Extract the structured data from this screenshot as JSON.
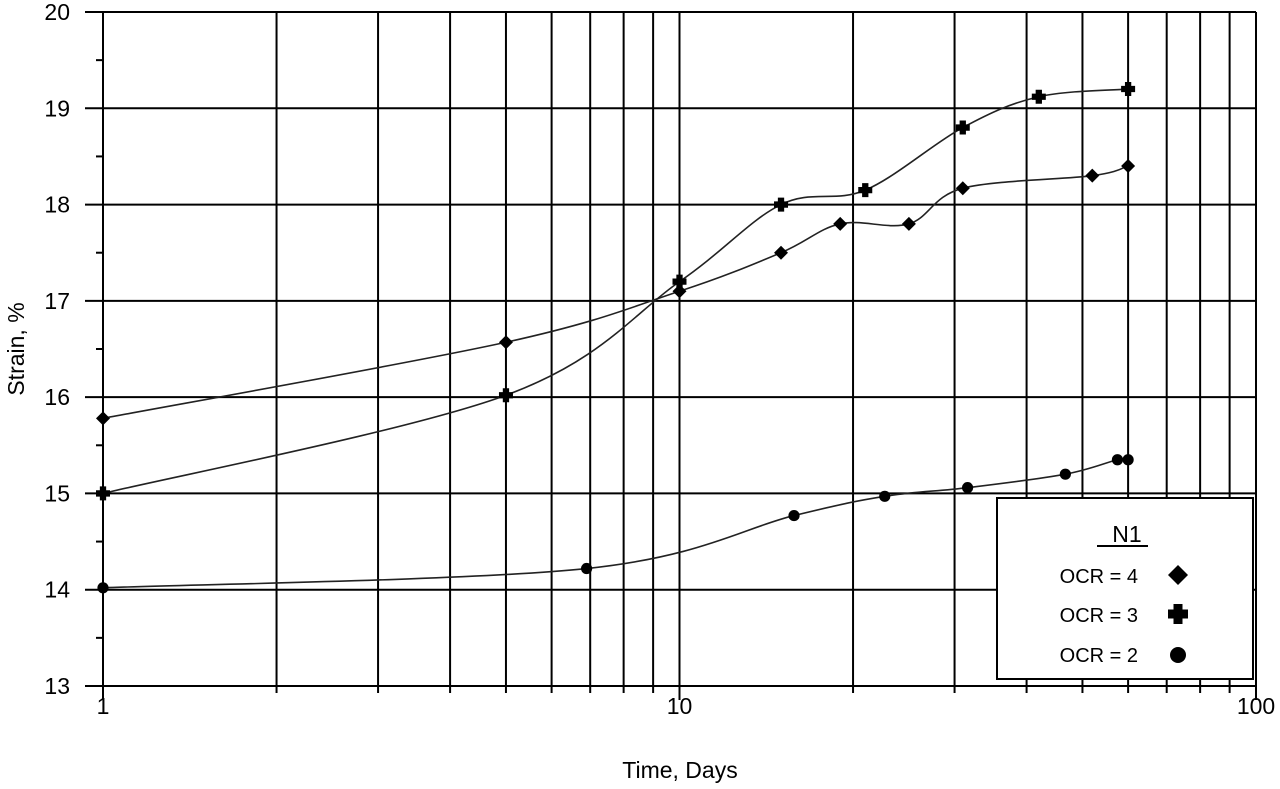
{
  "chart_data": {
    "type": "line",
    "title": "",
    "xlabel": "Time, Days",
    "ylabel": "Strain, %",
    "xscale": "log",
    "xlim": [
      1,
      100
    ],
    "ylim": [
      13,
      20
    ],
    "x_tick_labels": [
      "1",
      "10",
      "100"
    ],
    "x_ticks": [
      1,
      10,
      100
    ],
    "y_tick_labels": [
      "13",
      "14",
      "15",
      "16",
      "17",
      "18",
      "19",
      "20"
    ],
    "y_ticks": [
      13,
      14,
      15,
      16,
      17,
      18,
      19,
      20
    ],
    "grid": true,
    "legend": {
      "title": "N1",
      "position": "lower right",
      "entries": [
        "OCR = 4",
        "OCR = 3",
        "OCR = 2"
      ]
    },
    "series": [
      {
        "name": "OCR = 4",
        "marker": "diamond",
        "x": [
          1,
          5,
          10,
          15,
          19,
          25,
          31,
          52,
          60
        ],
        "y": [
          15.78,
          16.57,
          17.1,
          17.5,
          17.8,
          17.8,
          18.17,
          18.3,
          18.4
        ]
      },
      {
        "name": "OCR = 3",
        "marker": "plus",
        "x": [
          1,
          5,
          10,
          15,
          21,
          31,
          42,
          60
        ],
        "y": [
          15.0,
          16.02,
          17.2,
          18.0,
          18.15,
          18.8,
          19.12,
          19.2
        ]
      },
      {
        "name": "OCR = 2",
        "marker": "circle",
        "x": [
          1,
          6.9,
          15.8,
          22.7,
          31.6,
          46.7,
          57.5,
          60
        ],
        "y": [
          14.02,
          14.22,
          14.77,
          14.97,
          15.06,
          15.2,
          15.35,
          15.35
        ]
      }
    ],
    "colors": {
      "line": "#000000",
      "grid": "#000000",
      "background": "#ffffff"
    }
  }
}
